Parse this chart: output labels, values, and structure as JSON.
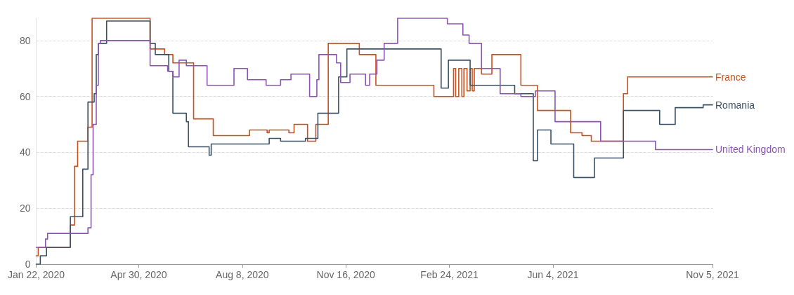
{
  "chart_data": {
    "type": "step",
    "xlim": [
      "2020-01-22",
      "2021-11-05"
    ],
    "ylim": [
      0,
      88
    ],
    "yticks": [
      0,
      20,
      40,
      60,
      80
    ],
    "xticks": [
      {
        "value": "2020-01-22",
        "label": "Jan 22, 2020"
      },
      {
        "value": "2020-04-30",
        "label": "Apr 30, 2020"
      },
      {
        "value": "2020-08-08",
        "label": "Aug 8, 2020"
      },
      {
        "value": "2020-11-16",
        "label": "Nov 16, 2020"
      },
      {
        "value": "2021-02-24",
        "label": "Feb 24, 2021"
      },
      {
        "value": "2021-06-04",
        "label": "Jun 4, 2021"
      },
      {
        "value": "2021-11-05",
        "label": "Nov 5, 2021"
      }
    ],
    "grid": "y",
    "marker": "none",
    "line_style": "solid",
    "series": [
      {
        "name": "France",
        "color": "#c8501e",
        "x": [
          "2020-01-22",
          "2020-01-24",
          "2020-02-24",
          "2020-02-28",
          "2020-03-02",
          "2020-03-12",
          "2020-03-16",
          "2020-05-11",
          "2020-05-25",
          "2020-06-02",
          "2020-06-22",
          "2020-07-11",
          "2020-08-15",
          "2020-09-01",
          "2020-09-03",
          "2020-09-22",
          "2020-09-27",
          "2020-10-10",
          "2020-10-18",
          "2020-10-30",
          "2020-11-29",
          "2020-12-15",
          "2021-02-09",
          "2021-02-28",
          "2021-03-02",
          "2021-03-05",
          "2021-03-08",
          "2021-03-10",
          "2021-03-13",
          "2021-03-16",
          "2021-03-18",
          "2021-03-20",
          "2021-03-27",
          "2021-04-06",
          "2021-05-04",
          "2021-05-20",
          "2021-06-21",
          "2021-07-02",
          "2021-07-11",
          "2021-08-11",
          "2021-08-15",
          "2021-11-05"
        ],
        "values": [
          3,
          6,
          14,
          35,
          44,
          49,
          88,
          77,
          75,
          72,
          52,
          46,
          48,
          47,
          48,
          47,
          50,
          44,
          50,
          79,
          75,
          64,
          60,
          70,
          60,
          70,
          60,
          70,
          62,
          70,
          62,
          70,
          68,
          75,
          64,
          55,
          47,
          46,
          44,
          61,
          67,
          67
        ]
      },
      {
        "name": "Romania",
        "color": "#3c5063",
        "x": [
          "2020-01-22",
          "2020-01-26",
          "2020-02-01",
          "2020-02-24",
          "2020-03-07",
          "2020-03-12",
          "2020-03-18",
          "2020-03-20",
          "2020-03-22",
          "2020-03-30",
          "2020-05-11",
          "2020-05-16",
          "2020-05-29",
          "2020-06-02",
          "2020-06-15",
          "2020-06-17",
          "2020-07-07",
          "2020-07-09",
          "2020-09-03",
          "2020-09-14",
          "2020-10-08",
          "2020-10-20",
          "2020-11-09",
          "2020-11-17",
          "2021-02-16",
          "2021-02-23",
          "2021-03-16",
          "2021-04-28",
          "2021-05-16",
          "2021-05-20",
          "2021-06-02",
          "2021-06-24",
          "2021-07-14",
          "2021-08-11",
          "2021-09-15",
          "2021-09-30",
          "2021-10-27",
          "2021-11-05"
        ],
        "values": [
          0,
          3,
          6,
          17,
          34,
          58,
          61,
          75,
          79,
          87,
          79,
          75,
          69,
          54,
          51,
          42,
          39,
          43,
          45,
          44,
          45,
          54,
          67,
          77,
          63,
          73,
          64,
          61,
          37,
          48,
          43,
          31,
          38,
          55,
          50,
          56,
          57,
          57
        ]
      },
      {
        "name": "United Kingdom",
        "color": "#8b52b8",
        "x": [
          "2020-01-22",
          "2020-01-31",
          "2020-02-02",
          "2020-03-12",
          "2020-03-15",
          "2020-03-17",
          "2020-03-20",
          "2020-03-22",
          "2020-03-24",
          "2020-05-11",
          "2020-05-28",
          "2020-06-02",
          "2020-06-08",
          "2020-06-15",
          "2020-07-05",
          "2020-07-31",
          "2020-08-13",
          "2020-08-31",
          "2020-09-14",
          "2020-09-24",
          "2020-10-12",
          "2020-10-19",
          "2020-10-21",
          "2020-11-07",
          "2020-11-11",
          "2020-11-20",
          "2020-12-05",
          "2020-12-09",
          "2020-12-16",
          "2020-12-23",
          "2021-01-05",
          "2021-02-22",
          "2021-03-09",
          "2021-03-15",
          "2021-03-27",
          "2021-04-14",
          "2021-05-04",
          "2021-05-18",
          "2021-06-06",
          "2021-07-20",
          "2021-09-11",
          "2021-11-05"
        ],
        "values": [
          6,
          9,
          11,
          13,
          32,
          50,
          64,
          79,
          80,
          71,
          69,
          67,
          73,
          71,
          64,
          70,
          66,
          64,
          66,
          68,
          60,
          66,
          75,
          72,
          65,
          68,
          64,
          68,
          73,
          79,
          88,
          86,
          82,
          79,
          70,
          61,
          60,
          62,
          51,
          44,
          41,
          41
        ]
      }
    ]
  }
}
